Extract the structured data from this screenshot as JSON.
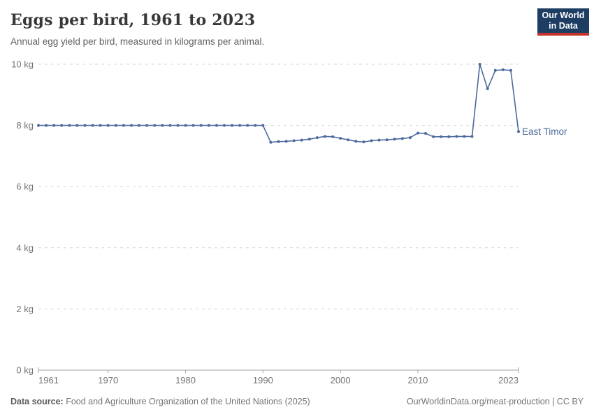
{
  "header": {
    "title": "Eggs per bird, 1961 to 2023",
    "subtitle": "Annual egg yield per bird, measured in kilograms per animal.",
    "logo_line1": "Our World",
    "logo_line2": "in Data"
  },
  "footer": {
    "source_label": "Data source:",
    "source_text": " Food and Agriculture Organization of the United Nations (2025)",
    "citation": "OurWorldinData.org/meat-production | CC BY"
  },
  "colors": {
    "line": "#4C6A9C",
    "grid": "#d5d5d5",
    "axis": "#a3a3a3",
    "tick_text": "#737373",
    "logo_bg": "#1d3d63",
    "logo_bar": "#c5342b"
  },
  "chart_data": {
    "type": "line",
    "title": "Eggs per bird, 1961 to 2023",
    "subtitle": "Annual egg yield per bird, measured in kilograms per animal.",
    "xlabel": "",
    "ylabel": "kg",
    "xlim": [
      1961,
      2023
    ],
    "ylim": [
      0,
      10
    ],
    "x_ticks": [
      1961,
      1970,
      1980,
      1990,
      2000,
      2010,
      2023
    ],
    "y_ticks": [
      0,
      2,
      4,
      6,
      8,
      10
    ],
    "y_tick_format": "{} kg",
    "grid": "horizontal-dashed",
    "legend_position": "end-of-line-label",
    "series": [
      {
        "name": "East Timor",
        "x": [
          1961,
          1962,
          1963,
          1964,
          1965,
          1966,
          1967,
          1968,
          1969,
          1970,
          1971,
          1972,
          1973,
          1974,
          1975,
          1976,
          1977,
          1978,
          1979,
          1980,
          1981,
          1982,
          1983,
          1984,
          1985,
          1986,
          1987,
          1988,
          1989,
          1990,
          1991,
          1992,
          1993,
          1994,
          1995,
          1996,
          1997,
          1998,
          1999,
          2000,
          2001,
          2002,
          2003,
          2004,
          2005,
          2006,
          2007,
          2008,
          2009,
          2010,
          2011,
          2012,
          2013,
          2014,
          2015,
          2016,
          2017,
          2018,
          2019,
          2020,
          2021,
          2022,
          2023
        ],
        "values": [
          8,
          8,
          8,
          8,
          8,
          8,
          8,
          8,
          8,
          8,
          8,
          8,
          8,
          8,
          8,
          8,
          8,
          8,
          8,
          8,
          8,
          8,
          8,
          8,
          8,
          8,
          8,
          8,
          8,
          8,
          7.45,
          7.47,
          7.48,
          7.5,
          7.52,
          7.55,
          7.6,
          7.64,
          7.63,
          7.58,
          7.53,
          7.48,
          7.46,
          7.5,
          7.52,
          7.53,
          7.55,
          7.57,
          7.6,
          7.75,
          7.74,
          7.63,
          7.63,
          7.63,
          7.64,
          7.64,
          7.64,
          10,
          9.2,
          9.8,
          9.82,
          9.8,
          7.8
        ]
      }
    ]
  }
}
